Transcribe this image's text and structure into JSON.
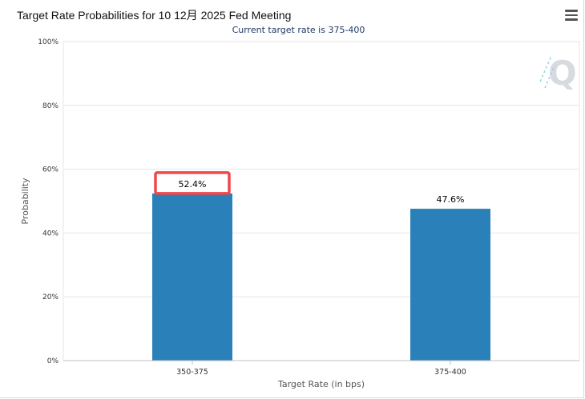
{
  "header": {
    "title": "Target Rate Probabilities for 10 12月 2025 Fed Meeting",
    "subtitle": "Current target rate is 375-400",
    "menu_icon": "hamburger-menu-icon",
    "logo_icon": "q-logo-icon"
  },
  "chart_data": {
    "type": "bar",
    "categories": [
      "350-375",
      "375-400"
    ],
    "values": [
      52.4,
      47.6
    ],
    "data_labels": [
      "52.4%",
      "47.6%"
    ],
    "xlabel": "Target Rate (in bps)",
    "ylabel": "Probability",
    "ylim": [
      0,
      100
    ],
    "yticks": [
      "0%",
      "20%",
      "40%",
      "60%",
      "80%",
      "100%"
    ],
    "ytick_values": [
      0,
      20,
      40,
      60,
      80,
      100
    ],
    "grid": true,
    "bar_color": "#2a80b9",
    "highlight_color": "#f0474a",
    "highlighted_label_index": 0
  }
}
